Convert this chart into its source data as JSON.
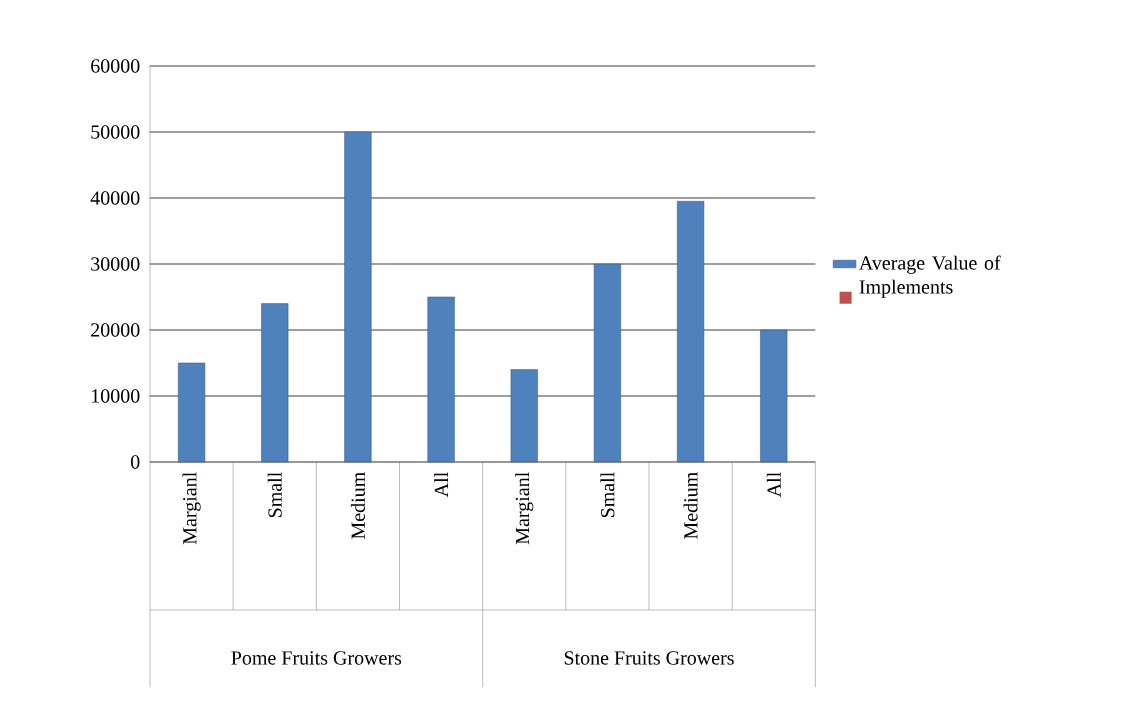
{
  "chart_data": {
    "type": "bar",
    "categories": [
      "Margianl",
      "Small",
      "Medium",
      "All",
      "Margianl",
      "Small",
      "Medium",
      "All"
    ],
    "series": [
      {
        "name": "Average Value of Implements",
        "color": "#4f81bd",
        "values": [
          15000,
          24000,
          50000,
          25000,
          14000,
          30000,
          39500,
          20000
        ]
      },
      {
        "color": "#c0504d",
        "values": [
          null,
          null,
          null,
          null,
          null,
          null,
          null,
          null
        ]
      }
    ],
    "ylim": [
      0,
      60000
    ],
    "yticks": [
      0,
      10000,
      20000,
      30000,
      40000,
      50000,
      60000
    ],
    "grid": "y",
    "legend": "right",
    "annotations": [
      "Pome Fruits Growers",
      "Stone Fruits Growers"
    ]
  }
}
